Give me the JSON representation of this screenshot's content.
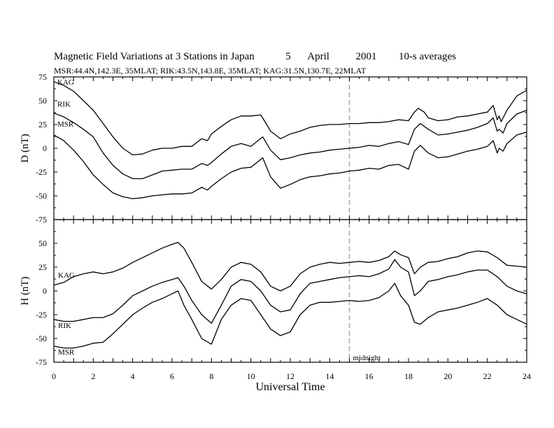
{
  "chart_data": {
    "type": "line",
    "title": {
      "main": "Magnetic Field Variations at 3 Stations in Japan",
      "day": "5",
      "month": "April",
      "year": "2001",
      "averaging": "10-s averages"
    },
    "subtitle": "MSR:44.4N,142.3E, 35MLAT;  RIK:43.5N,143.8E, 35MLAT;  KAG:31.5N,130.7E, 22MLAT",
    "xlabel": "Universal Time",
    "xlim": [
      0,
      24
    ],
    "xticks": [
      0,
      2,
      4,
      6,
      8,
      10,
      12,
      14,
      16,
      18,
      20,
      22,
      24
    ],
    "grid": false,
    "marker": {
      "x": 15,
      "label": "midnight",
      "color": "#aaaaaa"
    },
    "panels": [
      {
        "ylabel": "D (nT)",
        "ylim": [
          -75,
          75
        ],
        "yticks": [
          75,
          50,
          25,
          0,
          -25,
          -50,
          -75
        ],
        "series": [
          {
            "name": "KAG",
            "x": [
              0,
              0.5,
              1,
              1.5,
              2,
              2.5,
              3,
              3.5,
              4,
              4.5,
              5,
              5.5,
              6,
              6.5,
              7,
              7.5,
              7.8,
              8,
              8.5,
              9,
              9.5,
              10,
              10.5,
              10.8,
              11,
              11.5,
              12,
              12.5,
              13,
              13.5,
              14,
              14.5,
              15,
              15.5,
              16,
              16.5,
              17,
              17.5,
              18,
              18.3,
              18.5,
              18.8,
              19,
              19.5,
              20,
              20.5,
              21,
              21.5,
              22,
              22.3,
              22.5,
              22.6,
              22.7,
              23,
              23.5,
              24
            ],
            "y": [
              70,
              66,
              60,
              50,
              40,
              26,
              12,
              0,
              -7,
              -6,
              -2,
              0,
              0,
              2,
              2,
              10,
              8,
              15,
              23,
              30,
              34,
              34,
              35,
              25,
              18,
              10,
              15,
              18,
              22,
              24,
              25,
              25,
              26,
              26,
              27,
              27,
              28,
              30,
              29,
              38,
              42,
              38,
              32,
              29,
              30,
              33,
              34,
              36,
              38,
              45,
              30,
              34,
              28,
              40,
              55,
              61
            ]
          },
          {
            "name": "RIK",
            "x": [
              0,
              0.5,
              1,
              1.5,
              2,
              2.5,
              3,
              3.5,
              4,
              4.5,
              5,
              5.5,
              6,
              6.5,
              7,
              7.5,
              7.8,
              8,
              8.5,
              9,
              9.5,
              10,
              10.3,
              10.6,
              11,
              11.5,
              12,
              12.5,
              13,
              13.5,
              14,
              14.5,
              15,
              15.5,
              16,
              16.5,
              17,
              17.5,
              18,
              18.3,
              18.6,
              19,
              19.5,
              20,
              20.5,
              21,
              21.5,
              22,
              22.3,
              22.5,
              22.6,
              22.8,
              23,
              23.5,
              24
            ],
            "y": [
              37,
              33,
              27,
              20,
              12,
              -5,
              -18,
              -27,
              -32,
              -32,
              -28,
              -24,
              -23,
              -22,
              -22,
              -16,
              -18,
              -15,
              -6,
              2,
              5,
              2,
              7,
              12,
              -2,
              -12,
              -10,
              -7,
              -5,
              -4,
              -2,
              -1,
              0,
              1,
              3,
              2,
              5,
              7,
              4,
              20,
              26,
              20,
              14,
              15,
              17,
              19,
              22,
              26,
              32,
              18,
              20,
              16,
              26,
              36,
              40
            ]
          },
          {
            "name": "MSR",
            "x": [
              0,
              0.5,
              1,
              1.5,
              2,
              2.5,
              3,
              3.5,
              4,
              4.5,
              5,
              5.5,
              6,
              6.5,
              7,
              7.5,
              7.8,
              8,
              8.5,
              9,
              9.5,
              10,
              10.3,
              10.6,
              11,
              11.5,
              12,
              12.5,
              13,
              13.5,
              14,
              14.5,
              15,
              15.5,
              16,
              16.5,
              17,
              17.5,
              18,
              18.3,
              18.6,
              19,
              19.5,
              20,
              20.5,
              21,
              21.5,
              22,
              22.3,
              22.5,
              22.6,
              22.8,
              23,
              23.5,
              24
            ],
            "y": [
              14,
              8,
              -2,
              -14,
              -28,
              -38,
              -47,
              -51,
              -53,
              -52,
              -50,
              -49,
              -48,
              -48,
              -47,
              -41,
              -44,
              -40,
              -32,
              -25,
              -21,
              -20,
              -15,
              -10,
              -30,
              -42,
              -38,
              -33,
              -30,
              -29,
              -27,
              -26,
              -24,
              -23,
              -21,
              -22,
              -18,
              -17,
              -22,
              -3,
              3,
              -5,
              -10,
              -9,
              -6,
              -3,
              -1,
              2,
              8,
              -5,
              0,
              -3,
              5,
              14,
              17
            ]
          }
        ],
        "labels": [
          "KAG",
          "RIK",
          "MSR"
        ]
      },
      {
        "ylabel": "H (nT)",
        "ylim": [
          -75,
          75
        ],
        "yticks": [
          50,
          25,
          0,
          -25,
          -50,
          -75
        ],
        "series": [
          {
            "name": "KAG",
            "x": [
              0,
              0.5,
              1,
              1.5,
              2,
              2.5,
              3,
              3.5,
              4,
              4.5,
              5,
              5.5,
              6,
              6.3,
              6.6,
              7,
              7.5,
              8,
              8.5,
              9,
              9.5,
              10,
              10.5,
              11,
              11.5,
              12,
              12.5,
              13,
              13.5,
              14,
              14.5,
              15,
              15.5,
              16,
              16.5,
              17,
              17.3,
              17.6,
              18,
              18.3,
              18.6,
              19,
              19.5,
              20,
              20.5,
              21,
              21.5,
              22,
              22.5,
              23,
              23.5,
              24
            ],
            "y": [
              6,
              9,
              15,
              18,
              20,
              18,
              20,
              24,
              30,
              35,
              40,
              45,
              49,
              51,
              45,
              30,
              10,
              2,
              12,
              25,
              30,
              28,
              20,
              5,
              0,
              5,
              18,
              25,
              28,
              30,
              29,
              30,
              31,
              30,
              32,
              36,
              42,
              38,
              35,
              18,
              25,
              30,
              31,
              34,
              36,
              40,
              42,
              41,
              35,
              27,
              26,
              25
            ]
          },
          {
            "name": "RIK",
            "x": [
              0,
              0.5,
              1,
              1.5,
              2,
              2.5,
              3,
              3.5,
              4,
              4.5,
              5,
              5.5,
              6,
              6.3,
              6.6,
              7,
              7.5,
              8,
              8.5,
              9,
              9.5,
              10,
              10.5,
              11,
              11.5,
              12,
              12.5,
              13,
              13.5,
              14,
              14.5,
              15,
              15.5,
              16,
              16.5,
              17,
              17.3,
              17.6,
              18,
              18.3,
              18.6,
              19,
              19.5,
              20,
              20.5,
              21,
              21.5,
              22,
              22.5,
              23,
              23.5,
              24
            ],
            "y": [
              -30,
              -32,
              -32,
              -30,
              -28,
              -28,
              -24,
              -15,
              -5,
              0,
              5,
              9,
              12,
              14,
              5,
              -10,
              -25,
              -34,
              -15,
              5,
              12,
              10,
              0,
              -15,
              -22,
              -20,
              -3,
              8,
              10,
              12,
              14,
              15,
              16,
              15,
              18,
              23,
              33,
              25,
              20,
              -5,
              0,
              10,
              12,
              15,
              17,
              20,
              22,
              22,
              15,
              5,
              0,
              -3
            ]
          },
          {
            "name": "MSR",
            "x": [
              0,
              0.5,
              1,
              1.5,
              2,
              2.5,
              3,
              3.5,
              4,
              4.5,
              5,
              5.5,
              6,
              6.3,
              6.6,
              7,
              7.5,
              8,
              8.5,
              9,
              9.5,
              10,
              10.5,
              11,
              11.5,
              12,
              12.5,
              13,
              13.5,
              14,
              14.5,
              15,
              15.5,
              16,
              16.5,
              17,
              17.3,
              17.6,
              18,
              18.3,
              18.6,
              19,
              19.5,
              20,
              20.5,
              21,
              21.5,
              22,
              22.5,
              23,
              23.5,
              24
            ],
            "y": [
              -58,
              -60,
              -60,
              -58,
              -55,
              -54,
              -45,
              -35,
              -25,
              -18,
              -12,
              -8,
              -3,
              0,
              -15,
              -30,
              -50,
              -56,
              -30,
              -15,
              -8,
              -10,
              -25,
              -40,
              -47,
              -43,
              -25,
              -15,
              -12,
              -12,
              -11,
              -10,
              -11,
              -10,
              -7,
              0,
              8,
              -5,
              -15,
              -33,
              -35,
              -28,
              -22,
              -20,
              -18,
              -15,
              -12,
              -8,
              -15,
              -25,
              -30,
              -35
            ]
          }
        ],
        "labels": [
          "KAG",
          "RIK",
          "MSR"
        ]
      }
    ]
  }
}
